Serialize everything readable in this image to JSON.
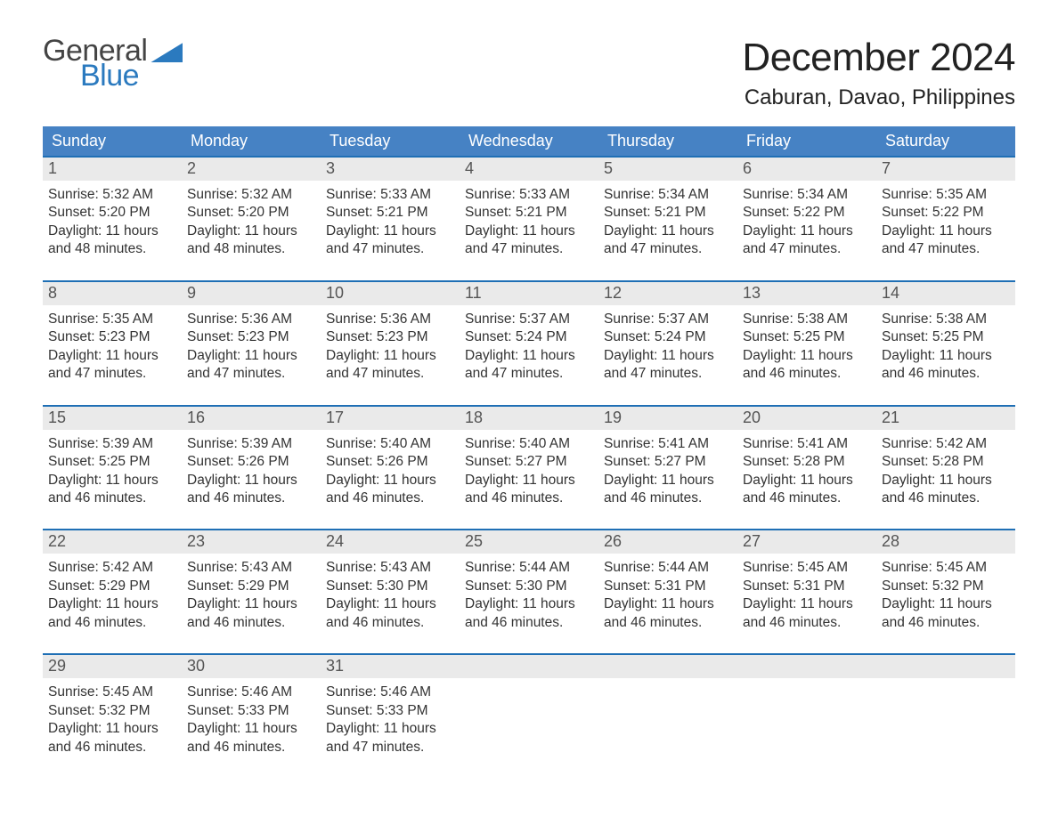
{
  "logo": {
    "line1": "General",
    "line2": "Blue"
  },
  "header": {
    "month_title": "December 2024",
    "location": "Caburan, Davao, Philippines"
  },
  "colors": {
    "header_blue": "#4682c4",
    "accent_blue": "#1f6fb5",
    "day_bg": "#eaeaea",
    "logo_blue": "#2b7abf"
  },
  "calendar": {
    "weekdays": [
      "Sunday",
      "Monday",
      "Tuesday",
      "Wednesday",
      "Thursday",
      "Friday",
      "Saturday"
    ],
    "weeks": [
      [
        {
          "day": "1",
          "sunrise": "Sunrise: 5:32 AM",
          "sunset": "Sunset: 5:20 PM",
          "daylight1": "Daylight: 11 hours",
          "daylight2": "and 48 minutes."
        },
        {
          "day": "2",
          "sunrise": "Sunrise: 5:32 AM",
          "sunset": "Sunset: 5:20 PM",
          "daylight1": "Daylight: 11 hours",
          "daylight2": "and 48 minutes."
        },
        {
          "day": "3",
          "sunrise": "Sunrise: 5:33 AM",
          "sunset": "Sunset: 5:21 PM",
          "daylight1": "Daylight: 11 hours",
          "daylight2": "and 47 minutes."
        },
        {
          "day": "4",
          "sunrise": "Sunrise: 5:33 AM",
          "sunset": "Sunset: 5:21 PM",
          "daylight1": "Daylight: 11 hours",
          "daylight2": "and 47 minutes."
        },
        {
          "day": "5",
          "sunrise": "Sunrise: 5:34 AM",
          "sunset": "Sunset: 5:21 PM",
          "daylight1": "Daylight: 11 hours",
          "daylight2": "and 47 minutes."
        },
        {
          "day": "6",
          "sunrise": "Sunrise: 5:34 AM",
          "sunset": "Sunset: 5:22 PM",
          "daylight1": "Daylight: 11 hours",
          "daylight2": "and 47 minutes."
        },
        {
          "day": "7",
          "sunrise": "Sunrise: 5:35 AM",
          "sunset": "Sunset: 5:22 PM",
          "daylight1": "Daylight: 11 hours",
          "daylight2": "and 47 minutes."
        }
      ],
      [
        {
          "day": "8",
          "sunrise": "Sunrise: 5:35 AM",
          "sunset": "Sunset: 5:23 PM",
          "daylight1": "Daylight: 11 hours",
          "daylight2": "and 47 minutes."
        },
        {
          "day": "9",
          "sunrise": "Sunrise: 5:36 AM",
          "sunset": "Sunset: 5:23 PM",
          "daylight1": "Daylight: 11 hours",
          "daylight2": "and 47 minutes."
        },
        {
          "day": "10",
          "sunrise": "Sunrise: 5:36 AM",
          "sunset": "Sunset: 5:23 PM",
          "daylight1": "Daylight: 11 hours",
          "daylight2": "and 47 minutes."
        },
        {
          "day": "11",
          "sunrise": "Sunrise: 5:37 AM",
          "sunset": "Sunset: 5:24 PM",
          "daylight1": "Daylight: 11 hours",
          "daylight2": "and 47 minutes."
        },
        {
          "day": "12",
          "sunrise": "Sunrise: 5:37 AM",
          "sunset": "Sunset: 5:24 PM",
          "daylight1": "Daylight: 11 hours",
          "daylight2": "and 47 minutes."
        },
        {
          "day": "13",
          "sunrise": "Sunrise: 5:38 AM",
          "sunset": "Sunset: 5:25 PM",
          "daylight1": "Daylight: 11 hours",
          "daylight2": "and 46 minutes."
        },
        {
          "day": "14",
          "sunrise": "Sunrise: 5:38 AM",
          "sunset": "Sunset: 5:25 PM",
          "daylight1": "Daylight: 11 hours",
          "daylight2": "and 46 minutes."
        }
      ],
      [
        {
          "day": "15",
          "sunrise": "Sunrise: 5:39 AM",
          "sunset": "Sunset: 5:25 PM",
          "daylight1": "Daylight: 11 hours",
          "daylight2": "and 46 minutes."
        },
        {
          "day": "16",
          "sunrise": "Sunrise: 5:39 AM",
          "sunset": "Sunset: 5:26 PM",
          "daylight1": "Daylight: 11 hours",
          "daylight2": "and 46 minutes."
        },
        {
          "day": "17",
          "sunrise": "Sunrise: 5:40 AM",
          "sunset": "Sunset: 5:26 PM",
          "daylight1": "Daylight: 11 hours",
          "daylight2": "and 46 minutes."
        },
        {
          "day": "18",
          "sunrise": "Sunrise: 5:40 AM",
          "sunset": "Sunset: 5:27 PM",
          "daylight1": "Daylight: 11 hours",
          "daylight2": "and 46 minutes."
        },
        {
          "day": "19",
          "sunrise": "Sunrise: 5:41 AM",
          "sunset": "Sunset: 5:27 PM",
          "daylight1": "Daylight: 11 hours",
          "daylight2": "and 46 minutes."
        },
        {
          "day": "20",
          "sunrise": "Sunrise: 5:41 AM",
          "sunset": "Sunset: 5:28 PM",
          "daylight1": "Daylight: 11 hours",
          "daylight2": "and 46 minutes."
        },
        {
          "day": "21",
          "sunrise": "Sunrise: 5:42 AM",
          "sunset": "Sunset: 5:28 PM",
          "daylight1": "Daylight: 11 hours",
          "daylight2": "and 46 minutes."
        }
      ],
      [
        {
          "day": "22",
          "sunrise": "Sunrise: 5:42 AM",
          "sunset": "Sunset: 5:29 PM",
          "daylight1": "Daylight: 11 hours",
          "daylight2": "and 46 minutes."
        },
        {
          "day": "23",
          "sunrise": "Sunrise: 5:43 AM",
          "sunset": "Sunset: 5:29 PM",
          "daylight1": "Daylight: 11 hours",
          "daylight2": "and 46 minutes."
        },
        {
          "day": "24",
          "sunrise": "Sunrise: 5:43 AM",
          "sunset": "Sunset: 5:30 PM",
          "daylight1": "Daylight: 11 hours",
          "daylight2": "and 46 minutes."
        },
        {
          "day": "25",
          "sunrise": "Sunrise: 5:44 AM",
          "sunset": "Sunset: 5:30 PM",
          "daylight1": "Daylight: 11 hours",
          "daylight2": "and 46 minutes."
        },
        {
          "day": "26",
          "sunrise": "Sunrise: 5:44 AM",
          "sunset": "Sunset: 5:31 PM",
          "daylight1": "Daylight: 11 hours",
          "daylight2": "and 46 minutes."
        },
        {
          "day": "27",
          "sunrise": "Sunrise: 5:45 AM",
          "sunset": "Sunset: 5:31 PM",
          "daylight1": "Daylight: 11 hours",
          "daylight2": "and 46 minutes."
        },
        {
          "day": "28",
          "sunrise": "Sunrise: 5:45 AM",
          "sunset": "Sunset: 5:32 PM",
          "daylight1": "Daylight: 11 hours",
          "daylight2": "and 46 minutes."
        }
      ],
      [
        {
          "day": "29",
          "sunrise": "Sunrise: 5:45 AM",
          "sunset": "Sunset: 5:32 PM",
          "daylight1": "Daylight: 11 hours",
          "daylight2": "and 46 minutes."
        },
        {
          "day": "30",
          "sunrise": "Sunrise: 5:46 AM",
          "sunset": "Sunset: 5:33 PM",
          "daylight1": "Daylight: 11 hours",
          "daylight2": "and 46 minutes."
        },
        {
          "day": "31",
          "sunrise": "Sunrise: 5:46 AM",
          "sunset": "Sunset: 5:33 PM",
          "daylight1": "Daylight: 11 hours",
          "daylight2": "and 47 minutes."
        },
        {
          "day": "",
          "sunrise": "",
          "sunset": "",
          "daylight1": "",
          "daylight2": ""
        },
        {
          "day": "",
          "sunrise": "",
          "sunset": "",
          "daylight1": "",
          "daylight2": ""
        },
        {
          "day": "",
          "sunrise": "",
          "sunset": "",
          "daylight1": "",
          "daylight2": ""
        },
        {
          "day": "",
          "sunrise": "",
          "sunset": "",
          "daylight1": "",
          "daylight2": ""
        }
      ]
    ]
  }
}
